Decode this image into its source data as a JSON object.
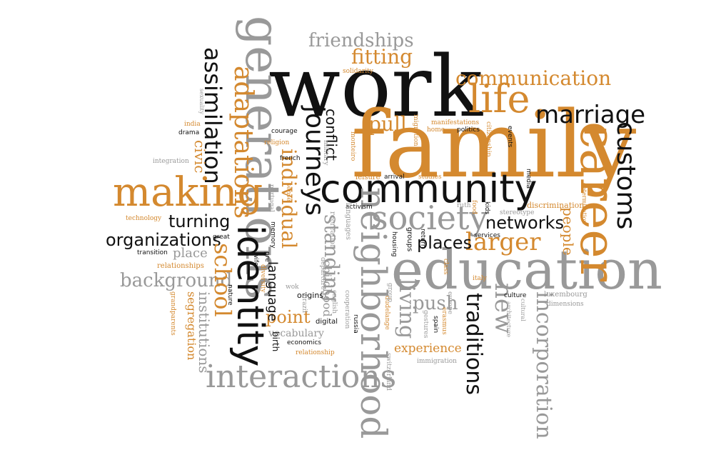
{
  "palette": {
    "black": "#111111",
    "orange": "#d4892f",
    "gray": "#999999"
  },
  "words": [
    {
      "text": "work",
      "color": "black"
    },
    {
      "text": "family",
      "color": "orange"
    },
    {
      "text": "education",
      "color": "gray"
    },
    {
      "text": "community",
      "color": "black"
    },
    {
      "text": "generations",
      "color": "gray"
    },
    {
      "text": "career",
      "color": "orange"
    },
    {
      "text": "making",
      "color": "orange"
    },
    {
      "text": "identity",
      "color": "black"
    },
    {
      "text": "neighborhood",
      "color": "gray"
    },
    {
      "text": "interactions",
      "color": "gray"
    },
    {
      "text": "marriage",
      "color": "black"
    },
    {
      "text": "life",
      "color": "orange"
    },
    {
      "text": "society",
      "color": "gray"
    },
    {
      "text": "journeys",
      "color": "black"
    },
    {
      "text": "customs",
      "color": "black"
    },
    {
      "text": "communication",
      "color": "orange"
    },
    {
      "text": "adaptations",
      "color": "orange"
    },
    {
      "text": "assimilation",
      "color": "black"
    },
    {
      "text": "incorporation",
      "color": "gray"
    },
    {
      "text": "traditions",
      "color": "black"
    },
    {
      "text": "larger",
      "color": "orange"
    },
    {
      "text": "networks",
      "color": "black"
    },
    {
      "text": "places",
      "color": "black"
    },
    {
      "text": "organizations",
      "color": "black"
    },
    {
      "text": "turning",
      "color": "black"
    },
    {
      "text": "background",
      "color": "gray"
    },
    {
      "text": "school",
      "color": "orange"
    },
    {
      "text": "individual",
      "color": "orange"
    },
    {
      "text": "standing",
      "color": "gray"
    },
    {
      "text": "living",
      "color": "gray"
    },
    {
      "text": "new",
      "color": "gray"
    },
    {
      "text": "push",
      "color": "gray"
    },
    {
      "text": "pull",
      "color": "orange"
    },
    {
      "text": "fitting",
      "color": "orange"
    },
    {
      "text": "friendships",
      "color": "gray"
    },
    {
      "text": "point",
      "color": "orange"
    },
    {
      "text": "experience",
      "color": "orange"
    },
    {
      "text": "conflict",
      "color": "black"
    },
    {
      "text": "people",
      "color": "orange"
    },
    {
      "text": "civic",
      "color": "orange"
    },
    {
      "text": "institutions",
      "color": "gray"
    },
    {
      "text": "segregation",
      "color": "orange"
    },
    {
      "text": "language",
      "color": "black"
    },
    {
      "text": "childhood",
      "color": "gray"
    },
    {
      "text": "place",
      "color": "gray"
    },
    {
      "text": "vocabulary",
      "color": "gray"
    },
    {
      "text": "relationships",
      "color": "orange"
    },
    {
      "text": "discrimination",
      "color": "orange"
    },
    {
      "text": "luxembourg",
      "color": "gray"
    },
    {
      "text": "origins",
      "color": "black"
    },
    {
      "text": "birth",
      "color": "black"
    },
    {
      "text": "digital",
      "color": "black"
    },
    {
      "text": "leisure",
      "color": "orange"
    },
    {
      "text": "arrival",
      "color": "black"
    },
    {
      "text": "studies",
      "color": "orange"
    },
    {
      "text": "activism",
      "color": "black"
    },
    {
      "text": "manifestations",
      "color": "orange"
    },
    {
      "text": "politics",
      "color": "black"
    },
    {
      "text": "home",
      "color": "orange"
    },
    {
      "text": "citizenship",
      "color": "orange"
    },
    {
      "text": "migration",
      "color": "orange"
    },
    {
      "text": "events",
      "color": "black"
    },
    {
      "text": "media",
      "color": "black"
    },
    {
      "text": "religion",
      "color": "orange"
    },
    {
      "text": "courage",
      "color": "black"
    },
    {
      "text": "french",
      "color": "black"
    },
    {
      "text": "portugal",
      "color": "gray"
    },
    {
      "text": "monteiro",
      "color": "orange"
    },
    {
      "text": "military",
      "color": "gray"
    },
    {
      "text": "sense",
      "color": "orange"
    },
    {
      "text": "recreation",
      "color": "gray"
    },
    {
      "text": "languages",
      "color": "gray"
    },
    {
      "text": "housing",
      "color": "black"
    },
    {
      "text": "groups",
      "color": "black"
    },
    {
      "text": "return",
      "color": "black"
    },
    {
      "text": "class",
      "color": "orange"
    },
    {
      "text": "italy",
      "color": "orange"
    },
    {
      "text": "ruth",
      "color": "gray"
    },
    {
      "text": "food",
      "color": "orange"
    },
    {
      "text": "kids",
      "color": "black"
    },
    {
      "text": "stereotype",
      "color": "gray"
    },
    {
      "text": "services",
      "color": "black"
    },
    {
      "text": "determination",
      "color": "orange"
    },
    {
      "text": "culture",
      "color": "black"
    },
    {
      "text": "cultural",
      "color": "gray"
    },
    {
      "text": "architecture",
      "color": "gray"
    },
    {
      "text": "dimensions",
      "color": "gray"
    },
    {
      "text": "europe",
      "color": "gray"
    },
    {
      "text": "erasmus",
      "color": "orange"
    },
    {
      "text": "spain",
      "color": "black"
    },
    {
      "text": "gestures",
      "color": "gray"
    },
    {
      "text": "immigration",
      "color": "gray"
    },
    {
      "text": "dudelange",
      "color": "orange"
    },
    {
      "text": "russia",
      "color": "black"
    },
    {
      "text": "switzerland",
      "color": "gray"
    },
    {
      "text": "group",
      "color": "gray"
    },
    {
      "text": "english",
      "color": "gray"
    },
    {
      "text": "cooperation",
      "color": "gray"
    },
    {
      "text": "departure",
      "color": "gray"
    },
    {
      "text": "economics",
      "color": "black"
    },
    {
      "text": "relationship",
      "color": "orange"
    },
    {
      "text": "brazil",
      "color": "gray"
    },
    {
      "text": "wok",
      "color": "gray"
    },
    {
      "text": "diversity",
      "color": "orange"
    },
    {
      "text": "pre",
      "color": "black"
    },
    {
      "text": "wife",
      "color": "black"
    },
    {
      "text": "memory",
      "color": "black"
    },
    {
      "text": "nature",
      "color": "black"
    },
    {
      "text": "great",
      "color": "black"
    },
    {
      "text": "transition",
      "color": "black"
    },
    {
      "text": "grandparents",
      "color": "orange"
    },
    {
      "text": "technology",
      "color": "orange"
    },
    {
      "text": "integration",
      "color": "gray"
    },
    {
      "text": "drama",
      "color": "black"
    },
    {
      "text": "india",
      "color": "orange"
    },
    {
      "text": "sexuality",
      "color": "gray"
    },
    {
      "text": "solidarity",
      "color": "orange"
    }
  ]
}
